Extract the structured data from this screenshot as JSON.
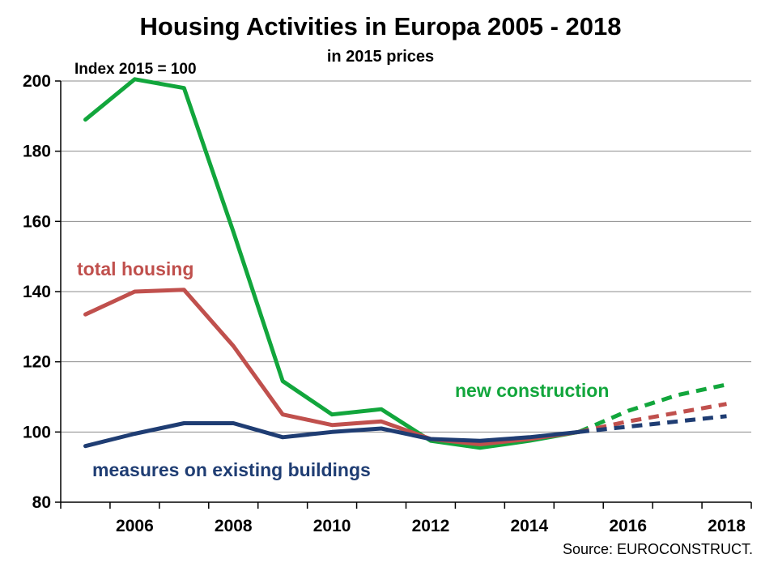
{
  "chart_data": {
    "type": "line",
    "title": "Housing Activities in Europa 2005 - 2018",
    "subtitle": "in 2015 prices",
    "index_note": "Index 2015 = 100",
    "source": "Source: EUROCONSTRUCT.",
    "ylim": [
      80,
      200
    ],
    "yticks": [
      80,
      100,
      120,
      140,
      160,
      180,
      200
    ],
    "xlim": [
      2004.5,
      2018.5
    ],
    "xticks": [
      2006,
      2008,
      2010,
      2012,
      2014,
      2016,
      2018
    ],
    "grid": true,
    "forecast_from": 2015,
    "series": [
      {
        "name": "new construction",
        "color": "#12a63c",
        "x": [
          2005,
          2006,
          2007,
          2008,
          2009,
          2010,
          2011,
          2012,
          2013,
          2014,
          2015,
          2016,
          2017,
          2018
        ],
        "values": [
          189,
          200.5,
          198,
          157,
          114.5,
          105,
          106.5,
          97.5,
          95.5,
          97.5,
          100,
          106,
          110.5,
          113.5
        ]
      },
      {
        "name": "total housing",
        "color": "#c0504d",
        "x": [
          2005,
          2006,
          2007,
          2008,
          2009,
          2010,
          2011,
          2012,
          2013,
          2014,
          2015,
          2016,
          2017,
          2018
        ],
        "values": [
          133.5,
          140,
          140.5,
          124.5,
          105,
          102,
          103,
          98,
          96.5,
          98,
          100,
          103,
          105.5,
          108
        ]
      },
      {
        "name": "measures on existing buildings",
        "color": "#1f3d73",
        "x": [
          2005,
          2006,
          2007,
          2008,
          2009,
          2010,
          2011,
          2012,
          2013,
          2014,
          2015,
          2016,
          2017,
          2018
        ],
        "values": [
          96,
          99.5,
          102.5,
          102.5,
          98.5,
          100,
          101,
          98,
          97.5,
          98.5,
          100,
          101.5,
          103,
          104.5
        ]
      }
    ]
  }
}
